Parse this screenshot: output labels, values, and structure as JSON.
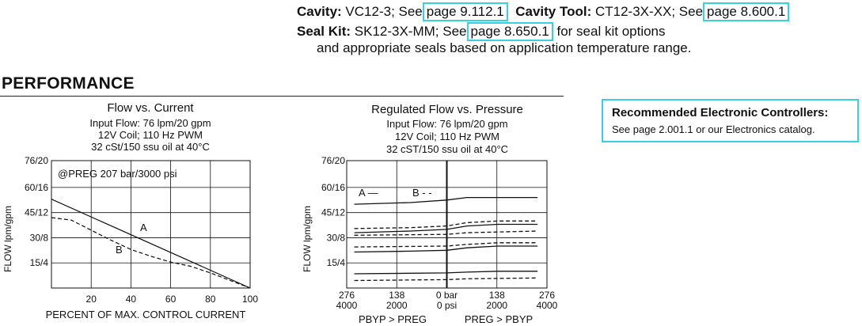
{
  "info": {
    "cavity_label": "Cavity:",
    "cavity_value": "VC12-3; See",
    "cavity_link": "page 9.112.1",
    "cavity_tool_label": "Cavity Tool:",
    "cavity_tool_value": "CT12-3X-XX; See",
    "cavity_tool_link": "page 8.600.1",
    "seal_kit_label": "Seal Kit:",
    "seal_kit_value": "SK12-3X-MM; See",
    "seal_kit_link": "page 8.650.1",
    "seal_kit_after": "for seal kit options",
    "seal_kit_line2": "and appropriate seals based on application temperature range."
  },
  "performance": {
    "heading": "PERFORMANCE"
  },
  "recommended": {
    "title": "Recommended Electronic Controllers:",
    "text": "See page 2.001.1 or our Electronics catalog."
  },
  "chart_data": [
    {
      "type": "line",
      "title": "Flow vs. Current",
      "subtitle": [
        "Input Flow: 76 lpm/20 gpm",
        "12V Coil; 110 Hz PWM",
        "32 cSt/150 ssu oil at 40°C"
      ],
      "annotation": "@PREG 207 bar/3000 psi",
      "xlabel": "PERCENT OF MAX. CONTROL CURRENT",
      "ylabel": "FLOW lpm/gpm",
      "xlim": [
        0,
        100
      ],
      "ylim": [
        0,
        76
      ],
      "x_ticks": [
        "20",
        "40",
        "60",
        "80",
        "100"
      ],
      "y_ticks": [
        "15/4",
        "30/8",
        "45/12",
        "60/16",
        "76/20"
      ],
      "y_tick_values": [
        15,
        30,
        45,
        60,
        76
      ],
      "series": [
        {
          "name": "A",
          "style": "solid",
          "x": [
            0,
            100
          ],
          "y": [
            53,
            0
          ]
        },
        {
          "name": "B",
          "style": "dashed",
          "x": [
            0,
            10,
            20,
            30,
            40,
            50,
            60,
            70,
            80,
            90,
            100
          ],
          "y": [
            42,
            40.5,
            34.5,
            28.5,
            23,
            19,
            15.5,
            13,
            9,
            4.5,
            0
          ]
        }
      ],
      "grid": true
    },
    {
      "type": "line",
      "title": "Regulated Flow vs. Pressure",
      "subtitle": [
        "Input Flow: 76 lpm/20 gpm",
        "12V Coil; 110 Hz PWM",
        "32 cST/150 ssu oil at 40°C"
      ],
      "legend": [
        "A —",
        "B - -"
      ],
      "ylabel": "FLOW lpm/gpm",
      "xlim": [
        -276,
        276
      ],
      "ylim": [
        0,
        76
      ],
      "x_ticks_top": [
        "276",
        "138",
        "0 bar",
        "138",
        "276"
      ],
      "x_ticks_bottom": [
        "4000",
        "2000",
        "0 psi",
        "2000",
        "4000"
      ],
      "x_region_labels": [
        "PBYP > PREG",
        "PREG > PBYP"
      ],
      "y_ticks": [
        "15/4",
        "30/8",
        "45/12",
        "60/16",
        "76/20"
      ],
      "y_tick_values": [
        15,
        30,
        45,
        60,
        76
      ],
      "series": [
        {
          "name": "A",
          "style": "solid",
          "x": [
            -255,
            -100,
            0,
            55,
            250
          ],
          "y": [
            50,
            51,
            52.5,
            54,
            54
          ]
        },
        {
          "name": "A",
          "style": "solid",
          "x": [
            -255,
            -100,
            0,
            55,
            140,
            250
          ],
          "y": [
            33,
            34,
            35,
            37,
            38,
            38
          ]
        },
        {
          "name": "B",
          "style": "dashed",
          "x": [
            -255,
            -100,
            0,
            55,
            140,
            250
          ],
          "y": [
            35.5,
            36,
            37,
            39,
            40,
            40
          ]
        },
        {
          "name": "B",
          "style": "dashed",
          "x": [
            -255,
            0,
            55,
            250
          ],
          "y": [
            31.5,
            32,
            33,
            34
          ]
        },
        {
          "name": "A",
          "style": "solid",
          "x": [
            -255,
            -100,
            0,
            55,
            140,
            250
          ],
          "y": [
            21.5,
            22,
            22.5,
            24,
            25,
            25
          ]
        },
        {
          "name": "B",
          "style": "dashed",
          "x": [
            -255,
            0,
            55,
            140,
            250
          ],
          "y": [
            24.5,
            25,
            26,
            27,
            27
          ]
        },
        {
          "name": "A",
          "style": "solid",
          "x": [
            -255,
            0,
            55,
            140,
            250
          ],
          "y": [
            8.5,
            9,
            9.5,
            10,
            10
          ]
        },
        {
          "name": "B",
          "style": "dashed",
          "x": [
            -255,
            0,
            55,
            250
          ],
          "y": [
            4.5,
            5,
            5.5,
            6
          ]
        }
      ],
      "grid": true
    }
  ]
}
